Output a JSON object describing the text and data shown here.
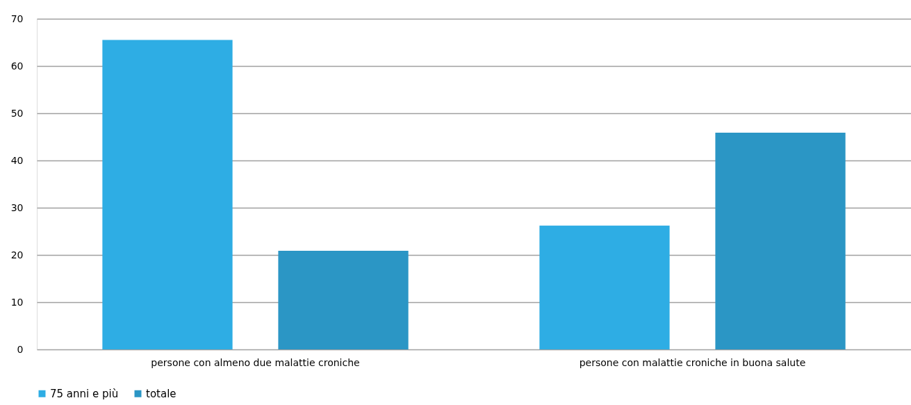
{
  "chart_data": {
    "type": "bar",
    "categories": [
      "persone con almeno due malattie croniche",
      "persone con malattie croniche in buona salute"
    ],
    "series": [
      {
        "name": "75 anni e più",
        "color": "#2eade4",
        "values": [
          65.5,
          26.2
        ]
      },
      {
        "name": "totale",
        "color": "#2b96c5",
        "values": [
          20.9,
          45.9
        ]
      }
    ],
    "ylim": [
      0,
      70
    ],
    "yticks": [
      0,
      10,
      20,
      30,
      40,
      50,
      60,
      70
    ],
    "grid": "y",
    "legend": "bottom"
  }
}
